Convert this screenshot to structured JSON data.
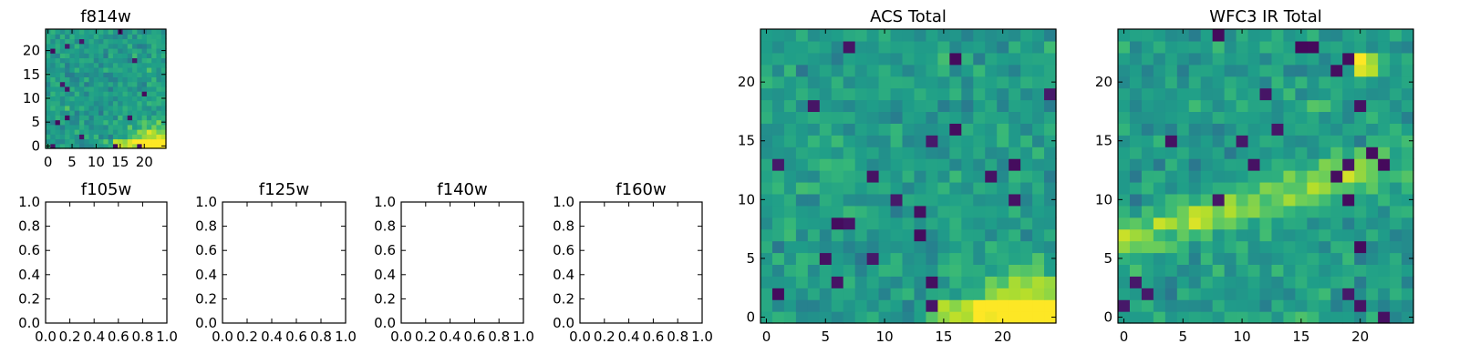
{
  "figure": {
    "background": "#ffffff",
    "colormap": "viridis"
  },
  "chart_data": [
    {
      "id": "f814w",
      "type": "heatmap",
      "title": "f814w",
      "grid_size": 25,
      "xlim": [
        -0.5,
        24.5
      ],
      "ylim": [
        -0.5,
        24.5
      ],
      "xticks": [
        0,
        5,
        10,
        15,
        20
      ],
      "yticks": [
        0,
        5,
        10,
        15,
        20
      ],
      "xtick_labels": [
        "0",
        "5",
        "10",
        "15",
        "20"
      ],
      "ytick_labels": [
        "0",
        "5",
        "10",
        "15",
        "20"
      ],
      "grid": false
    },
    {
      "id": "f105w",
      "type": "scatter",
      "title": "f105w",
      "empty": true,
      "xlim": [
        0.0,
        1.0
      ],
      "ylim": [
        0.0,
        1.0
      ],
      "xticks": [
        0.0,
        0.2,
        0.4,
        0.6,
        0.8,
        1.0
      ],
      "yticks": [
        0.0,
        0.2,
        0.4,
        0.6,
        0.8,
        1.0
      ],
      "xtick_labels": [
        "0.0",
        "0.2",
        "0.4",
        "0.6",
        "0.8",
        "1.0"
      ],
      "ytick_labels": [
        "0.0",
        "0.2",
        "0.4",
        "0.6",
        "0.8",
        "1.0"
      ],
      "grid": false
    },
    {
      "id": "f125w",
      "type": "scatter",
      "title": "f125w",
      "empty": true,
      "xlim": [
        0.0,
        1.0
      ],
      "ylim": [
        0.0,
        1.0
      ],
      "xticks": [
        0.0,
        0.2,
        0.4,
        0.6,
        0.8,
        1.0
      ],
      "yticks": [
        0.0,
        0.2,
        0.4,
        0.6,
        0.8,
        1.0
      ],
      "xtick_labels": [
        "0.0",
        "0.2",
        "0.4",
        "0.6",
        "0.8",
        "1.0"
      ],
      "ytick_labels": [
        "0.0",
        "0.2",
        "0.4",
        "0.6",
        "0.8",
        "1.0"
      ],
      "grid": false
    },
    {
      "id": "f140w",
      "type": "scatter",
      "title": "f140w",
      "empty": true,
      "xlim": [
        0.0,
        1.0
      ],
      "ylim": [
        0.0,
        1.0
      ],
      "xticks": [
        0.0,
        0.2,
        0.4,
        0.6,
        0.8,
        1.0
      ],
      "yticks": [
        0.0,
        0.2,
        0.4,
        0.6,
        0.8,
        1.0
      ],
      "xtick_labels": [
        "0.0",
        "0.2",
        "0.4",
        "0.6",
        "0.8",
        "1.0"
      ],
      "ytick_labels": [
        "0.0",
        "0.2",
        "0.4",
        "0.6",
        "0.8",
        "1.0"
      ],
      "grid": false
    },
    {
      "id": "f160w",
      "type": "scatter",
      "title": "f160w",
      "empty": true,
      "xlim": [
        0.0,
        1.0
      ],
      "ylim": [
        0.0,
        1.0
      ],
      "xticks": [
        0.0,
        0.2,
        0.4,
        0.6,
        0.8,
        1.0
      ],
      "yticks": [
        0.0,
        0.2,
        0.4,
        0.6,
        0.8,
        1.0
      ],
      "xtick_labels": [
        "0.0",
        "0.2",
        "0.4",
        "0.6",
        "0.8",
        "1.0"
      ],
      "ytick_labels": [
        "0.0",
        "0.2",
        "0.4",
        "0.6",
        "0.8",
        "1.0"
      ],
      "grid": false
    },
    {
      "id": "acs_total",
      "type": "heatmap",
      "title": "ACS Total",
      "grid_size": 25,
      "xlim": [
        -0.5,
        24.5
      ],
      "ylim": [
        -0.5,
        24.5
      ],
      "xticks": [
        0,
        5,
        10,
        15,
        20
      ],
      "yticks": [
        0,
        5,
        10,
        15,
        20
      ],
      "xtick_labels": [
        "0",
        "5",
        "10",
        "15",
        "20"
      ],
      "ytick_labels": [
        "0",
        "5",
        "10",
        "15",
        "20"
      ],
      "grid": false
    },
    {
      "id": "wfc3_ir_total",
      "type": "heatmap",
      "title": "WFC3 IR Total",
      "grid_size": 25,
      "xlim": [
        -0.5,
        24.5
      ],
      "ylim": [
        -0.5,
        24.5
      ],
      "xticks": [
        0,
        5,
        10,
        15,
        20
      ],
      "yticks": [
        0,
        5,
        10,
        15,
        20
      ],
      "xtick_labels": [
        "0",
        "5",
        "10",
        "15",
        "20"
      ],
      "ytick_labels": [
        "0",
        "5",
        "10",
        "15",
        "20"
      ],
      "grid": false
    }
  ]
}
